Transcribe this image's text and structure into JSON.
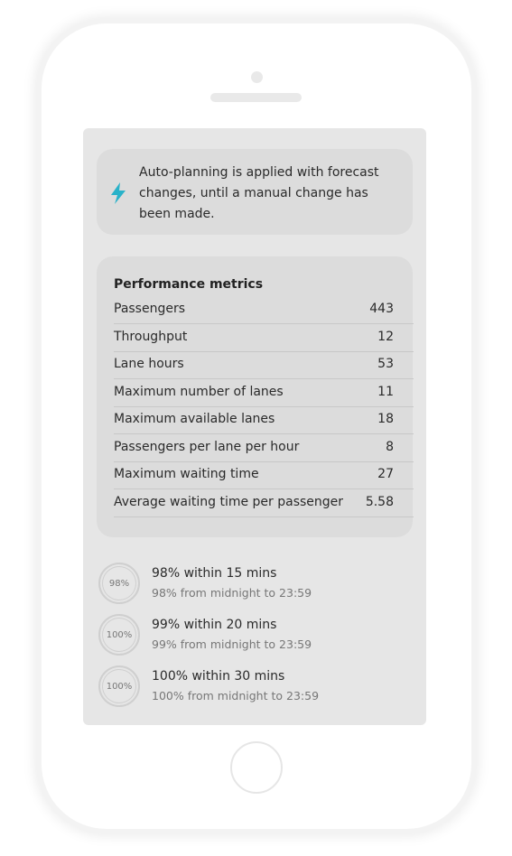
{
  "notice": {
    "text": "Auto-planning is applied with forecast changes, until a manual change has been made."
  },
  "metrics": {
    "title": "Performance metrics",
    "rows": [
      [
        "Passengers",
        "443"
      ],
      [
        "Throughput",
        "12"
      ],
      [
        "Lane hours",
        "53"
      ],
      [
        "Maximum number of lanes",
        "11"
      ],
      [
        "Maximum available lanes",
        "18"
      ],
      [
        "Passengers per lane per hour",
        "8"
      ],
      [
        "Maximum waiting time",
        "27"
      ],
      [
        "Average waiting time per passenger",
        "5.58"
      ]
    ]
  },
  "service_levels": [
    {
      "badge": "98%",
      "title": "98% within 15 mins",
      "subtitle": "98% from midnight to 23:59"
    },
    {
      "badge": "100%",
      "title": "99% within 20 mins",
      "subtitle": "99% from midnight to 23:59"
    },
    {
      "badge": "100%",
      "title": "100% within 30 mins",
      "subtitle": "100% from midnight to 23:59"
    }
  ]
}
